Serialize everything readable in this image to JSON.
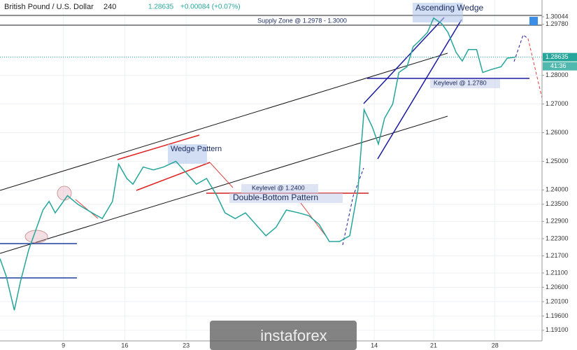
{
  "chart_data": {
    "type": "line",
    "title": "British Pound / U.S. Dollar",
    "interval": "240",
    "last_price": 1.28635,
    "change": "+0.00084 (+0.07%)",
    "timer": "41:36",
    "watermark": "instaforex",
    "annotations": [
      {
        "text": "Supply Zone @ 1.2978 - 1.3000"
      },
      {
        "text": "Ascending Wedge"
      },
      {
        "text": "Keylevel @ 1.2780"
      },
      {
        "text": "Wedge Pattern"
      },
      {
        "text": "Keylevel @ 1.2400"
      },
      {
        "text": "Double-Bottom Pattern"
      }
    ],
    "x": [
      0,
      3,
      7,
      10,
      14,
      17,
      21,
      24,
      27,
      33,
      38,
      45,
      50,
      55,
      58,
      62,
      65,
      70,
      75,
      80,
      86,
      91,
      96,
      101,
      106,
      110,
      115,
      120,
      125,
      130,
      135,
      140,
      146,
      151,
      156,
      161,
      166,
      171,
      175,
      178,
      182,
      185,
      188,
      192,
      195,
      199,
      202,
      205,
      209,
      212,
      216,
      219,
      223,
      226,
      229,
      233,
      236,
      240,
      245,
      248,
      252
    ],
    "series": [
      {
        "name": "GBP/USD",
        "color": "#26a69a",
        "values": [
          1.216,
          1.21,
          1.198,
          1.208,
          1.219,
          1.225,
          1.233,
          1.236,
          1.232,
          1.238,
          1.235,
          1.232,
          1.23,
          1.236,
          1.249,
          1.244,
          1.242,
          1.248,
          1.247,
          1.248,
          1.25,
          1.246,
          1.242,
          1.244,
          1.238,
          1.232,
          1.23,
          1.232,
          1.228,
          1.224,
          1.227,
          1.233,
          1.232,
          1.231,
          1.228,
          1.222,
          1.222,
          1.224,
          1.24,
          1.268,
          1.262,
          1.256,
          1.265,
          1.27,
          1.281,
          1.283,
          1.29,
          1.292,
          1.295,
          1.3,
          1.298,
          1.295,
          1.288,
          1.285,
          1.289,
          1.289,
          1.281,
          1.282,
          1.283,
          1.286,
          1.28635
        ]
      }
    ],
    "xlim": [
      0,
      265
    ],
    "xticks": [
      {
        "value": 31,
        "label": "9"
      },
      {
        "value": 61,
        "label": "16"
      },
      {
        "value": 91,
        "label": "23"
      },
      {
        "value": 183,
        "label": "14"
      },
      {
        "value": 212,
        "label": "21"
      },
      {
        "value": 242,
        "label": "28"
      }
    ],
    "ylim": [
      1.1873,
      1.3063
    ],
    "yticks": [
      {
        "value": 1.30044,
        "label": "1.30044"
      },
      {
        "value": 1.2978,
        "label": "1.29780"
      },
      {
        "value": 1.28,
        "label": "1.28000"
      },
      {
        "value": 1.27,
        "label": "1.27000"
      },
      {
        "value": 1.26,
        "label": "1.26000"
      },
      {
        "value": 1.25,
        "label": "1.25000"
      },
      {
        "value": 1.24,
        "label": "1.24000"
      },
      {
        "value": 1.235,
        "label": "1.23500"
      },
      {
        "value": 1.229,
        "label": "1.22900"
      },
      {
        "value": 1.223,
        "label": "1.22300"
      },
      {
        "value": 1.217,
        "label": "1.21700"
      },
      {
        "value": 1.211,
        "label": "1.21100"
      },
      {
        "value": 1.206,
        "label": "1.20600"
      },
      {
        "value": 1.201,
        "label": "1.20100"
      },
      {
        "value": 1.196,
        "label": "1.19600"
      },
      {
        "value": 1.191,
        "label": "1.19100"
      }
    ],
    "grid": true
  }
}
